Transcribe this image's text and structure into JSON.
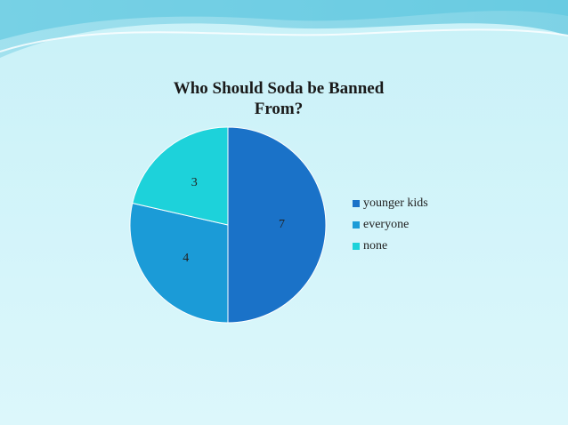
{
  "chart_data": {
    "type": "pie",
    "title": "Who Should Soda be Banned From?",
    "categories": [
      "younger kids",
      "everyone",
      "none"
    ],
    "values": [
      7,
      4,
      3
    ],
    "colors": [
      "#1a72c8",
      "#1b9bd7",
      "#1dd2da"
    ],
    "legend": "right"
  }
}
